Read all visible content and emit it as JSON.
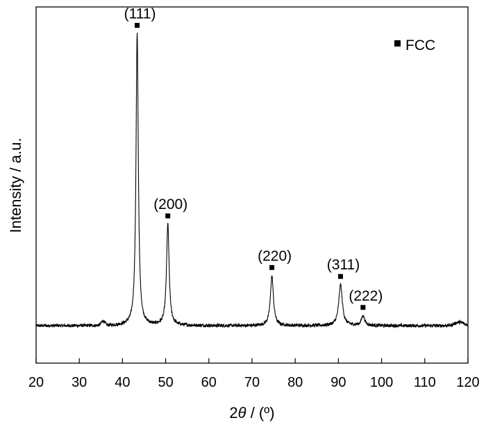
{
  "chart_data": {
    "type": "line",
    "title": "",
    "xlabel_prefix": "2",
    "xlabel_theta": "θ",
    "xlabel_suffix": " / (º)",
    "ylabel": "Intensity / a.u.",
    "xlim": [
      20,
      120
    ],
    "ylim": [
      0,
      100
    ],
    "x_ticks": [
      20,
      30,
      40,
      50,
      60,
      70,
      80,
      90,
      100,
      110,
      120
    ],
    "grid": false,
    "legend": {
      "position": "top-right",
      "marker": "square",
      "label": "FCC"
    },
    "baseline": 10.5,
    "noise": 0.45,
    "peaks": [
      {
        "label": "(111)",
        "x": 43.4,
        "y": 82.0,
        "width": 0.32
      },
      {
        "label": "(200)",
        "x": 50.5,
        "y": 28.5,
        "width": 0.36
      },
      {
        "label": "(220)",
        "x": 74.6,
        "y": 14.0,
        "width": 0.42
      },
      {
        "label": "(311)",
        "x": 90.5,
        "y": 11.5,
        "width": 0.5
      },
      {
        "label": "(222)",
        "x": 95.7,
        "y": 2.8,
        "width": 0.45
      }
    ],
    "small_bumps": [
      {
        "x": 35.5,
        "y": 1.2,
        "width": 0.6
      },
      {
        "x": 118.0,
        "y": 1.0,
        "width": 1.5
      }
    ]
  }
}
